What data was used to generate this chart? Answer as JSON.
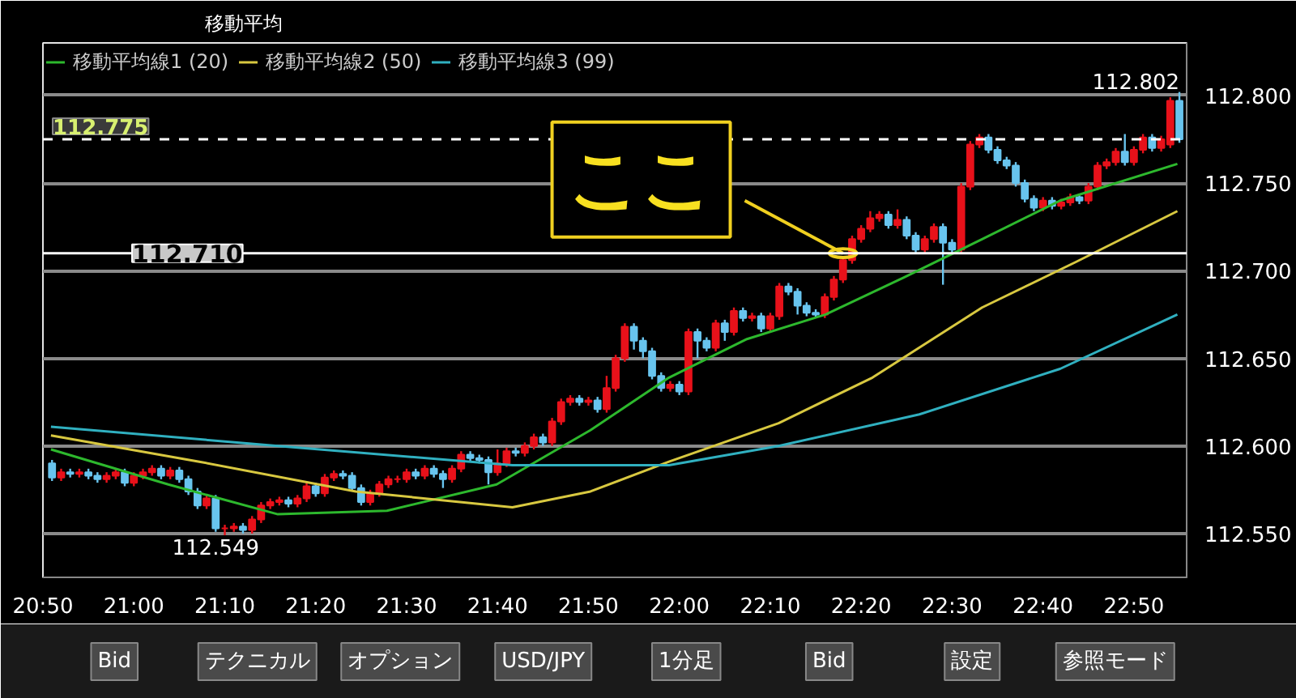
{
  "chart_data": {
    "type": "candlestick",
    "title": "移動平均",
    "legend": "top left",
    "grid": "y",
    "xlim": [
      20.8333,
      22.93
    ],
    "ylim": [
      112.525,
      112.83
    ],
    "xticks": [
      {
        "value": 20.8333,
        "label": "20:50"
      },
      {
        "value": 21,
        "label": "21:00"
      },
      {
        "value": 21.1667,
        "label": "21:10"
      },
      {
        "value": 21.3333,
        "label": "21:20"
      },
      {
        "value": 21.5,
        "label": "21:30"
      },
      {
        "value": 21.6667,
        "label": "21:40"
      },
      {
        "value": 21.8333,
        "label": "21:50"
      },
      {
        "value": 22,
        "label": "22:00"
      },
      {
        "value": 22.1667,
        "label": "22:10"
      },
      {
        "value": 22.3333,
        "label": "22:20"
      },
      {
        "value": 22.5,
        "label": "22:30"
      },
      {
        "value": 22.6667,
        "label": "22:40"
      },
      {
        "value": 22.8333,
        "label": "22:50"
      }
    ],
    "yticks": [
      {
        "value": 112.55,
        "label": "112.550"
      },
      {
        "value": 112.6,
        "label": "112.600"
      },
      {
        "value": 112.65,
        "label": "112.650"
      },
      {
        "value": 112.7,
        "label": "112.700"
      },
      {
        "value": 112.75,
        "label": "112.750"
      },
      {
        "value": 112.8,
        "label": "112.800"
      }
    ],
    "ref_lines": [
      {
        "axis": "y",
        "value": 112.775,
        "label": "112.775",
        "color": "#ffffff",
        "line_style": "dashed"
      },
      {
        "axis": "y",
        "value": 112.71,
        "label": "112.710",
        "color": "#ffffff",
        "line_style": "solid"
      }
    ],
    "annotations": [
      {
        "text": "ここ",
        "x": 22.3,
        "y": 112.71
      },
      {
        "text": "112.802",
        "x": 22.9167,
        "y": 112.802
      },
      {
        "text": "112.549",
        "x": 21.15,
        "y": 112.549
      },
      "Bid",
      "テクニカル",
      "オプション",
      "USD/JPY",
      "1分足",
      "Bid",
      "設定",
      "参照モード"
    ],
    "series": [
      {
        "colors": [
          "#68c4ee",
          "#e8111a",
          "#68c4ee",
          "#e8111a",
          "#68c4ee",
          "#68c4ee",
          "#e8111a",
          "#e8111a",
          "#68c4ee",
          "#e8111a",
          "#e8111a",
          "#e8111a",
          "#68c4ee",
          "#e8111a",
          "#68c4ee",
          "#68c4ee",
          "#68c4ee",
          "#e8111a",
          "#68c4ee",
          "#e8111a",
          "#e8111a",
          "#68c4ee",
          "#e8111a",
          "#e8111a",
          "#e8111a",
          "#e8111a",
          "#68c4ee",
          "#e8111a",
          "#e8111a",
          "#68c4ee",
          "#e8111a",
          "#e8111a",
          "#68c4ee",
          "#68c4ee",
          "#68c4ee",
          "#e8111a",
          "#e8111a",
          "#e8111a",
          "#e8111a",
          "#e8111a",
          "#68c4ee",
          "#e8111a",
          "#68c4ee",
          "#68c4ee",
          "#e8111a",
          "#e8111a",
          "#68c4ee",
          "#68c4ee",
          "#68c4ee",
          "#e8111a",
          "#e8111a",
          "#68c4ee",
          "#e8111a",
          "#e8111a",
          "#68c4ee",
          "#e8111a",
          "#e8111a",
          "#e8111a",
          "#68c4ee",
          "#e8111a",
          "#68c4ee",
          "#e8111a",
          "#e8111a",
          "#e8111a",
          "#68c4ee",
          "#68c4ee",
          "#68c4ee",
          "#68c4ee",
          "#e8111a",
          "#68c4ee",
          "#e8111a",
          "#68c4ee",
          "#68c4ee",
          "#e8111a",
          "#68c4ee",
          "#e8111a",
          "#68c4ee",
          "#e8111a",
          "#68c4ee",
          "#e8111a",
          "#e8111a",
          "#68c4ee",
          "#68c4ee",
          "#68c4ee",
          "#68c4ee",
          "#e8111a",
          "#e8111a",
          "#e8111a",
          "#e8111a",
          "#e8111a",
          "#e8111a",
          "#e8111a",
          "#68c4ee",
          "#e8111a",
          "#68c4ee",
          "#68c4ee",
          "#e8111a",
          "#e8111a",
          "#68c4ee",
          "#68c4ee",
          "#e8111a",
          "#e8111a",
          "#e8111a",
          "#68c4ee",
          "#68c4ee",
          "#68c4ee",
          "#68c4ee",
          "#68c4ee",
          "#68c4ee",
          "#e8111a",
          "#68c4ee",
          "#e8111a",
          "#e8111a",
          "#68c4ee",
          "#e8111a",
          "#e8111a",
          "#e8111a",
          "#e8111a",
          "#68c4ee",
          "#e8111a",
          "#e8111a",
          "#68c4ee",
          "#e8111a",
          "#e8111a",
          "#68c4ee"
        ],
        "x": [
          20.85,
          20.8667,
          20.8833,
          20.9,
          20.9167,
          20.9333,
          20.95,
          20.9667,
          20.9833,
          21,
          21.0167,
          21.0333,
          21.05,
          21.0667,
          21.0833,
          21.1,
          21.1167,
          21.1333,
          21.15,
          21.1667,
          21.1833,
          21.2,
          21.2167,
          21.2333,
          21.25,
          21.2667,
          21.2833,
          21.3,
          21.3167,
          21.3333,
          21.35,
          21.3667,
          21.3833,
          21.4,
          21.4167,
          21.4333,
          21.45,
          21.4667,
          21.4833,
          21.5,
          21.5167,
          21.5333,
          21.55,
          21.5667,
          21.5833,
          21.6,
          21.6167,
          21.6333,
          21.65,
          21.6667,
          21.6833,
          21.7,
          21.7167,
          21.7333,
          21.75,
          21.7667,
          21.7833,
          21.8,
          21.8167,
          21.8333,
          21.85,
          21.8667,
          21.8833,
          21.9,
          21.9167,
          21.9333,
          21.95,
          21.9667,
          21.9833,
          22,
          22.0167,
          22.0333,
          22.05,
          22.0667,
          22.0833,
          22.1,
          22.1167,
          22.1333,
          22.15,
          22.1667,
          22.1833,
          22.2,
          22.2167,
          22.2333,
          22.25,
          22.2667,
          22.2833,
          22.3,
          22.3167,
          22.3333,
          22.35,
          22.3667,
          22.3833,
          22.4,
          22.4167,
          22.4333,
          22.45,
          22.4667,
          22.4833,
          22.5,
          22.5167,
          22.5333,
          22.55,
          22.5667,
          22.5833,
          22.6,
          22.6167,
          22.6333,
          22.65,
          22.6667,
          22.6833,
          22.7,
          22.7167,
          22.7333,
          22.75,
          22.7667,
          22.7833,
          22.8,
          22.8167,
          22.8333,
          22.85,
          22.8667,
          22.8833,
          22.9,
          22.9167
        ],
        "ohlc": [
          [
            112.59,
            112.592,
            112.58,
            112.582
          ],
          [
            112.582,
            112.587,
            112.58,
            112.585
          ],
          [
            112.585,
            112.587,
            112.582,
            112.584
          ],
          [
            112.584,
            112.587,
            112.582,
            112.585
          ],
          [
            112.585,
            112.587,
            112.581,
            112.583
          ],
          [
            112.583,
            112.585,
            112.579,
            112.581
          ],
          [
            112.581,
            112.585,
            112.579,
            112.583
          ],
          [
            112.583,
            112.587,
            112.581,
            112.585
          ],
          [
            112.585,
            112.587,
            112.577,
            112.579
          ],
          [
            112.579,
            112.585,
            112.577,
            112.583
          ],
          [
            112.583,
            112.587,
            112.581,
            112.585
          ],
          [
            112.585,
            112.589,
            112.583,
            112.587
          ],
          [
            112.587,
            112.589,
            112.581,
            112.583
          ],
          [
            112.583,
            112.588,
            112.581,
            112.586
          ],
          [
            112.586,
            112.588,
            112.579,
            112.581
          ],
          [
            112.581,
            112.583,
            112.572,
            112.574
          ],
          [
            112.574,
            112.576,
            112.564,
            112.566
          ],
          [
            112.566,
            112.572,
            112.564,
            112.57
          ],
          [
            112.57,
            112.572,
            112.551,
            112.553
          ],
          [
            112.553,
            112.555,
            112.549,
            112.553
          ],
          [
            112.553,
            112.556,
            112.551,
            112.554
          ],
          [
            112.554,
            112.556,
            112.55,
            112.552
          ],
          [
            112.552,
            112.56,
            112.55,
            112.558
          ],
          [
            112.558,
            112.568,
            112.556,
            112.566
          ],
          [
            112.566,
            112.57,
            112.564,
            112.568
          ],
          [
            112.568,
            112.571,
            112.566,
            112.569
          ],
          [
            112.569,
            112.571,
            112.565,
            112.567
          ],
          [
            112.567,
            112.572,
            112.565,
            112.57
          ],
          [
            112.57,
            112.579,
            112.568,
            112.577
          ],
          [
            112.577,
            112.579,
            112.571,
            112.573
          ],
          [
            112.573,
            112.584,
            112.571,
            112.582
          ],
          [
            112.582,
            112.586,
            112.58,
            112.584
          ],
          [
            112.584,
            112.586,
            112.581,
            112.583
          ],
          [
            112.583,
            112.585,
            112.574,
            112.576
          ],
          [
            112.576,
            112.578,
            112.566,
            112.568
          ],
          [
            112.568,
            112.575,
            112.566,
            112.573
          ],
          [
            112.573,
            112.58,
            112.571,
            112.578
          ],
          [
            112.578,
            112.583,
            112.576,
            112.581
          ],
          [
            112.581,
            112.583,
            112.579,
            112.581
          ],
          [
            112.581,
            112.587,
            112.579,
            112.585
          ],
          [
            112.585,
            112.587,
            112.581,
            112.583
          ],
          [
            112.583,
            112.589,
            112.581,
            112.587
          ],
          [
            112.587,
            112.589,
            112.582,
            112.584
          ],
          [
            112.584,
            112.586,
            112.576,
            112.581
          ],
          [
            112.581,
            112.589,
            112.579,
            112.587
          ],
          [
            112.587,
            112.597,
            112.585,
            112.595
          ],
          [
            112.595,
            112.597,
            112.591,
            112.593
          ],
          [
            112.593,
            112.595,
            112.59,
            112.592
          ],
          [
            112.592,
            112.594,
            112.578,
            112.585
          ],
          [
            112.585,
            112.598,
            112.583,
            112.59
          ],
          [
            112.59,
            112.599,
            112.588,
            112.597
          ],
          [
            112.597,
            112.599,
            112.594,
            112.596
          ],
          [
            112.596,
            112.602,
            112.594,
            112.6
          ],
          [
            112.6,
            112.607,
            112.598,
            112.605
          ],
          [
            112.605,
            112.607,
            112.6,
            112.602
          ],
          [
            112.602,
            112.616,
            112.6,
            112.614
          ],
          [
            112.614,
            112.627,
            112.612,
            112.625
          ],
          [
            112.625,
            112.629,
            112.623,
            112.627
          ],
          [
            112.627,
            112.629,
            112.623,
            112.625
          ],
          [
            112.625,
            112.628,
            112.623,
            112.626
          ],
          [
            112.626,
            112.628,
            112.619,
            112.621
          ],
          [
            112.621,
            112.64,
            112.619,
            112.633
          ],
          [
            112.633,
            112.652,
            112.631,
            112.65
          ],
          [
            112.65,
            112.67,
            112.648,
            112.668
          ],
          [
            112.668,
            112.67,
            112.655,
            112.66
          ],
          [
            112.66,
            112.662,
            112.65,
            112.654
          ],
          [
            112.654,
            112.656,
            112.638,
            112.64
          ],
          [
            112.64,
            112.642,
            112.631,
            112.633
          ],
          [
            112.633,
            112.637,
            112.631,
            112.635
          ],
          [
            112.635,
            112.637,
            112.629,
            112.631
          ],
          [
            112.631,
            112.667,
            112.629,
            112.665
          ],
          [
            112.665,
            112.667,
            112.65,
            112.66
          ],
          [
            112.66,
            112.662,
            112.654,
            112.656
          ],
          [
            112.656,
            112.672,
            112.654,
            112.67
          ],
          [
            112.67,
            112.672,
            112.66,
            112.665
          ],
          [
            112.665,
            112.679,
            112.663,
            112.677
          ],
          [
            112.677,
            112.679,
            112.671,
            112.673
          ],
          [
            112.673,
            112.676,
            112.671,
            112.674
          ],
          [
            112.674,
            112.676,
            112.665,
            112.667
          ],
          [
            112.667,
            112.676,
            112.665,
            112.674
          ],
          [
            112.674,
            112.693,
            112.672,
            112.691
          ],
          [
            112.691,
            112.693,
            112.686,
            112.688
          ],
          [
            112.688,
            112.69,
            112.675,
            112.68
          ],
          [
            112.68,
            112.682,
            112.674,
            112.676
          ],
          [
            112.676,
            112.678,
            112.673,
            112.675
          ],
          [
            112.675,
            112.687,
            112.673,
            112.685
          ],
          [
            112.685,
            112.697,
            112.683,
            112.695
          ],
          [
            112.695,
            112.708,
            112.693,
            112.706
          ],
          [
            112.706,
            112.72,
            112.704,
            112.718
          ],
          [
            112.718,
            112.726,
            112.716,
            112.724
          ],
          [
            112.724,
            112.734,
            112.722,
            112.73
          ],
          [
            112.73,
            112.734,
            112.728,
            112.732
          ],
          [
            112.732,
            112.734,
            112.724,
            112.726
          ],
          [
            112.726,
            112.735,
            112.724,
            112.729
          ],
          [
            112.729,
            112.731,
            112.718,
            112.72
          ],
          [
            112.72,
            112.722,
            112.71,
            112.712
          ],
          [
            112.712,
            112.72,
            112.71,
            112.718
          ],
          [
            112.718,
            112.727,
            112.716,
            112.725
          ],
          [
            112.725,
            112.727,
            112.692,
            112.716
          ],
          [
            112.716,
            112.718,
            112.71,
            112.712
          ],
          [
            112.712,
            112.75,
            112.71,
            112.748
          ],
          [
            112.748,
            112.774,
            112.746,
            112.772
          ],
          [
            112.772,
            112.778,
            112.77,
            112.776
          ],
          [
            112.776,
            112.778,
            112.767,
            112.769
          ],
          [
            112.769,
            112.771,
            112.761,
            112.763
          ],
          [
            112.763,
            112.765,
            112.758,
            112.76
          ],
          [
            112.76,
            112.762,
            112.748,
            112.75
          ],
          [
            112.75,
            112.752,
            112.739,
            112.741
          ],
          [
            112.741,
            112.743,
            112.734,
            112.736
          ],
          [
            112.736,
            112.742,
            112.734,
            112.74
          ],
          [
            112.74,
            112.742,
            112.735,
            112.737
          ],
          [
            112.737,
            112.741,
            112.735,
            112.739
          ],
          [
            112.739,
            112.744,
            112.737,
            112.742
          ],
          [
            112.742,
            112.744,
            112.738,
            112.74
          ],
          [
            112.74,
            112.75,
            112.738,
            112.748
          ],
          [
            112.748,
            112.762,
            112.746,
            112.76
          ],
          [
            112.76,
            112.764,
            112.758,
            112.762
          ],
          [
            112.762,
            112.77,
            112.76,
            112.768
          ],
          [
            112.768,
            112.778,
            112.76,
            112.762
          ],
          [
            112.762,
            112.771,
            112.76,
            112.769
          ],
          [
            112.769,
            112.778,
            112.767,
            112.776
          ],
          [
            112.776,
            112.778,
            112.768,
            112.77
          ],
          [
            112.77,
            112.777,
            112.768,
            112.775
          ],
          [
            112.772,
            112.799,
            112.77,
            112.797
          ],
          [
            112.797,
            112.802,
            112.773,
            112.775
          ]
        ]
      },
      {
        "type": "line",
        "name": "移動平均線1 (20)",
        "color": "#2db82d",
        "x": [
          20.848,
          21.063,
          21.264,
          21.464,
          21.665,
          21.837,
          21.981,
          22.124,
          22.268,
          22.411,
          22.555,
          22.698,
          22.913
        ],
        "values": [
          112.598,
          112.578,
          112.561,
          112.563,
          112.578,
          112.609,
          112.639,
          112.661,
          112.675,
          112.696,
          112.718,
          112.74,
          112.761
        ]
      },
      {
        "type": "line",
        "name": "移動平均線2 (50)",
        "color": "#d8c840",
        "x": [
          20.848,
          21.12,
          21.407,
          21.694,
          21.837,
          21.981,
          22.182,
          22.354,
          22.555,
          22.727,
          22.913
        ],
        "values": [
          112.606,
          112.591,
          112.574,
          112.565,
          112.574,
          112.591,
          112.613,
          112.639,
          112.679,
          112.705,
          112.734
        ]
      },
      {
        "type": "line",
        "name": "移動平均線3 (99)",
        "color": "#30b0c0",
        "x": [
          20.848,
          21.264,
          21.694,
          21.981,
          22.182,
          22.44,
          22.698,
          22.913
        ],
        "values": [
          112.611,
          112.6,
          112.589,
          112.589,
          112.6,
          112.618,
          112.644,
          112.675
        ]
      }
    ]
  }
}
